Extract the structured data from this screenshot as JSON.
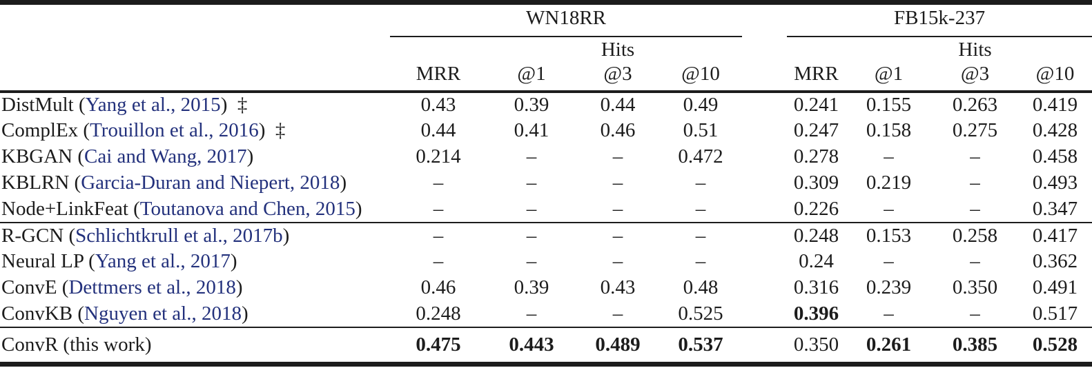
{
  "table": {
    "colors": {
      "text": "#1c1c1c",
      "citation_link": "#23317c",
      "rule": "#1c1c1c",
      "background": "#ffffff"
    },
    "groups": [
      {
        "label": "WN18RR",
        "hits_label": "Hits",
        "columns": [
          "MRR",
          "@1",
          "@3",
          "@10"
        ]
      },
      {
        "label": "FB15k-237",
        "hits_label": "Hits",
        "columns": [
          "MRR",
          "@1",
          "@3",
          "@10"
        ]
      }
    ],
    "missing_value_symbol": "–",
    "sections": [
      {
        "rows": [
          {
            "name": [
              {
                "t": "DistMult ("
              },
              {
                "t": "Yang et al., 2015",
                "cite": true
              },
              {
                "t": ")  ‡"
              }
            ],
            "wn": [
              "0.43",
              "0.39",
              "0.44",
              "0.49"
            ],
            "fb": [
              "0.241",
              "0.155",
              "0.263",
              "0.419"
            ]
          },
          {
            "name": [
              {
                "t": "ComplEx ("
              },
              {
                "t": "Trouillon et al., 2016",
                "cite": true
              },
              {
                "t": ")  ‡"
              }
            ],
            "wn": [
              "0.44",
              "0.41",
              "0.46",
              "0.51"
            ],
            "fb": [
              "0.247",
              "0.158",
              "0.275",
              "0.428"
            ]
          },
          {
            "name": [
              {
                "t": "KBGAN ("
              },
              {
                "t": "Cai and Wang, 2017",
                "cite": true
              },
              {
                "t": ")"
              }
            ],
            "wn": [
              "0.214",
              "–",
              "–",
              "0.472"
            ],
            "fb": [
              "0.278",
              "–",
              "–",
              "0.458"
            ]
          },
          {
            "name": [
              {
                "t": "KBLRN ("
              },
              {
                "t": "Garcia-Duran and Niepert, 2018",
                "cite": true
              },
              {
                "t": ")"
              }
            ],
            "wn": [
              "–",
              "–",
              "–",
              "–"
            ],
            "fb": [
              "0.309",
              "0.219",
              "–",
              "0.493"
            ]
          },
          {
            "name": [
              {
                "t": "Node+LinkFeat ("
              },
              {
                "t": "Toutanova and Chen, 2015",
                "cite": true
              },
              {
                "t": ")"
              }
            ],
            "wn": [
              "–",
              "–",
              "–",
              "–"
            ],
            "fb": [
              "0.226",
              "–",
              "–",
              "0.347"
            ]
          }
        ]
      },
      {
        "rows": [
          {
            "name": [
              {
                "t": "R-GCN ("
              },
              {
                "t": "Schlichtkrull et al., 2017b",
                "cite": true
              },
              {
                "t": ")"
              }
            ],
            "wn": [
              "–",
              "–",
              "–",
              "–"
            ],
            "fb": [
              "0.248",
              "0.153",
              "0.258",
              "0.417"
            ]
          },
          {
            "name": [
              {
                "t": "Neural LP ("
              },
              {
                "t": "Yang et al., 2017",
                "cite": true
              },
              {
                "t": ")"
              }
            ],
            "wn": [
              "–",
              "–",
              "–",
              "–"
            ],
            "fb": [
              "0.24",
              "–",
              "–",
              "0.362"
            ]
          },
          {
            "name": [
              {
                "t": "ConvE ("
              },
              {
                "t": "Dettmers et al., 2018",
                "cite": true
              },
              {
                "t": ")"
              }
            ],
            "wn": [
              "0.46",
              "0.39",
              "0.43",
              "0.48"
            ],
            "fb": [
              "0.316",
              "0.239",
              "0.350",
              "0.491"
            ]
          },
          {
            "name": [
              {
                "t": "ConvKB ("
              },
              {
                "t": "Nguyen et al., 2018",
                "cite": true
              },
              {
                "t": ")"
              }
            ],
            "wn": [
              "0.248",
              "–",
              "–",
              "0.525"
            ],
            "fb": [
              "0.396",
              "–",
              "–",
              "0.517"
            ],
            "bold": [
              0,
              0,
              0,
              0,
              1,
              0,
              0,
              0
            ]
          }
        ]
      },
      {
        "rows": [
          {
            "name": [
              {
                "t": "ConvR (this work)"
              }
            ],
            "wn": [
              "0.475",
              "0.443",
              "0.489",
              "0.537"
            ],
            "fb": [
              "0.350",
              "0.261",
              "0.385",
              "0.528"
            ],
            "bold": [
              1,
              1,
              1,
              1,
              0,
              1,
              1,
              1
            ]
          }
        ]
      }
    ]
  }
}
